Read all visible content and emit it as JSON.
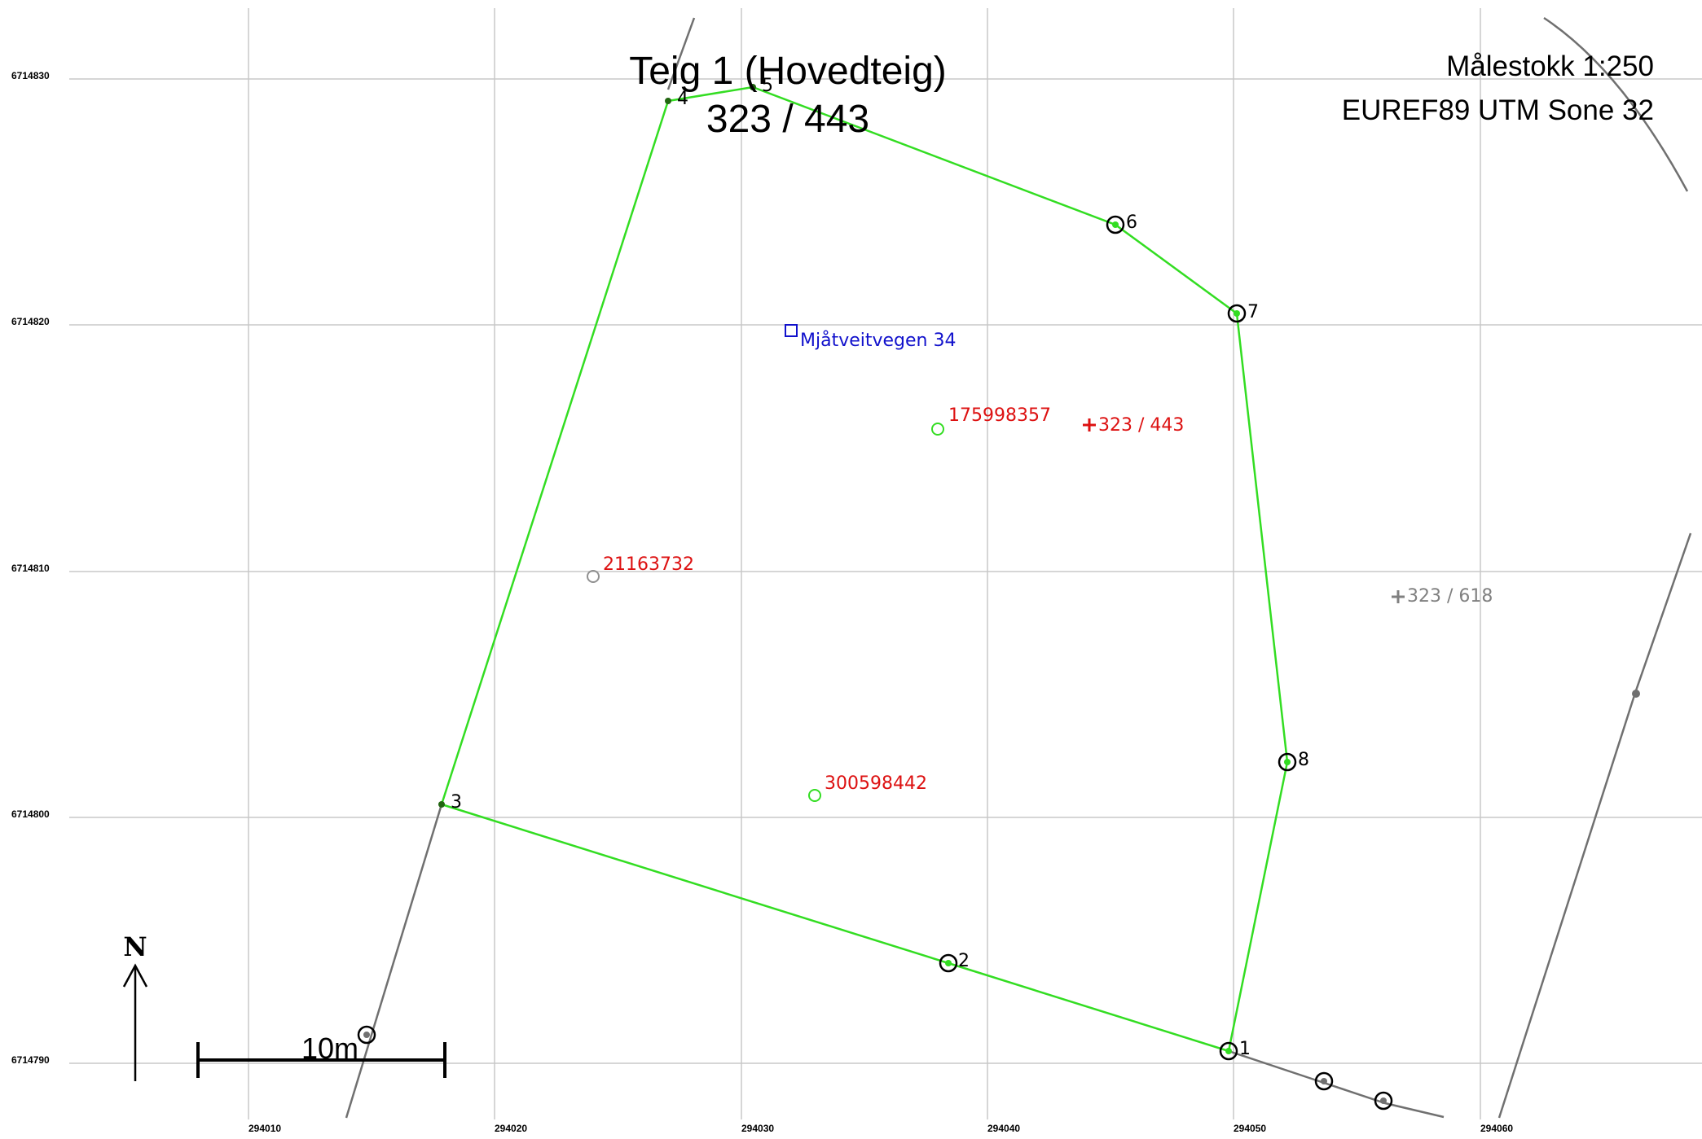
{
  "header": {
    "title": "Teig 1 (Hovedteig)",
    "parcel": "323 / 443",
    "scale": "Målestokk 1:250",
    "crs": "EUREF89 UTM Sone 32"
  },
  "grid": {
    "x_ticks": [
      "294010",
      "294020",
      "294030",
      "294040",
      "294050",
      "294060"
    ],
    "y_ticks": [
      "6714830",
      "6714820",
      "6714810",
      "6714800",
      "6714790"
    ]
  },
  "boundary_points": [
    {
      "label": "1"
    },
    {
      "label": "2"
    },
    {
      "label": "3"
    },
    {
      "label": "4"
    },
    {
      "label": "5"
    },
    {
      "label": "6"
    },
    {
      "label": "7"
    },
    {
      "label": "8"
    }
  ],
  "labels": {
    "address": "Mjåtveitvegen 34",
    "building_1": "175998357",
    "building_2": "21163732",
    "building_3": "300598442",
    "parcel_marker": "323 / 443",
    "neighbor_parcel": "323 / 618"
  },
  "scale_bar": {
    "label": "10m"
  },
  "north_arrow": {
    "label": "N"
  },
  "colors": {
    "boundary": "#33dd22",
    "neighbor_line": "#707070",
    "label_red": "#dd1111",
    "address_blue": "#1111cc",
    "grid": "#c8c8c8"
  }
}
